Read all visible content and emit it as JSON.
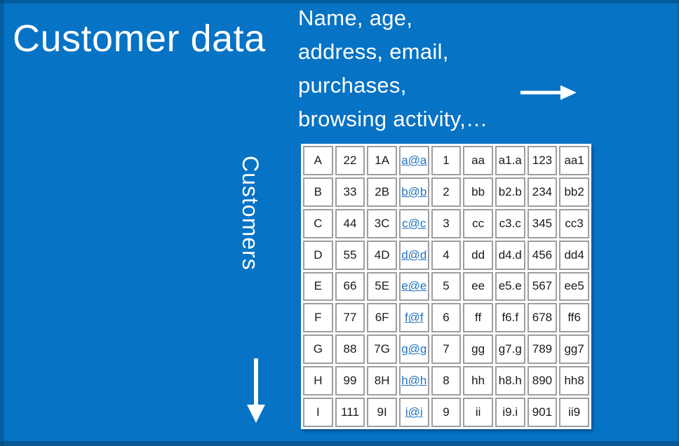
{
  "slide": {
    "title": "Customer data",
    "customers_label": "Customers"
  },
  "note": {
    "lines": [
      "Name, age,",
      "address, email,",
      "purchases,",
      "browsing activity,…"
    ]
  },
  "icons": {
    "right_arrow": "right-arrow-icon",
    "down_arrow": "down-arrow-icon"
  },
  "colors": {
    "background": "#0673C5",
    "edge_shade": "#0A5E9E",
    "text_on_blue": "#FFFFFF",
    "cell_border": "#9E9E9E",
    "cell_text": "#1A1A1A",
    "link": "#2073BE"
  },
  "table": {
    "link_column_index": 3,
    "rows": [
      [
        "A",
        "22",
        "1A",
        "a@a",
        "1",
        "aa",
        "a1.a",
        "123",
        "aa1"
      ],
      [
        "B",
        "33",
        "2B",
        "b@b",
        "2",
        "bb",
        "b2.b",
        "234",
        "bb2"
      ],
      [
        "C",
        "44",
        "3C",
        "c@c",
        "3",
        "cc",
        "c3.c",
        "345",
        "cc3"
      ],
      [
        "D",
        "55",
        "4D",
        "d@d",
        "4",
        "dd",
        "d4.d",
        "456",
        "dd4"
      ],
      [
        "E",
        "66",
        "5E",
        "e@e",
        "5",
        "ee",
        "e5.e",
        "567",
        "ee5"
      ],
      [
        "F",
        "77",
        "6F",
        "f@f",
        "6",
        "ff",
        "f6.f",
        "678",
        "ff6"
      ],
      [
        "G",
        "88",
        "7G",
        "g@g",
        "7",
        "gg",
        "g7.g",
        "789",
        "gg7"
      ],
      [
        "H",
        "99",
        "8H",
        "h@h",
        "8",
        "hh",
        "h8.h",
        "890",
        "hh8"
      ],
      [
        "I",
        "111",
        "9I",
        "i@i",
        "9",
        "ii",
        "i9.i",
        "901",
        "ii9"
      ]
    ]
  }
}
